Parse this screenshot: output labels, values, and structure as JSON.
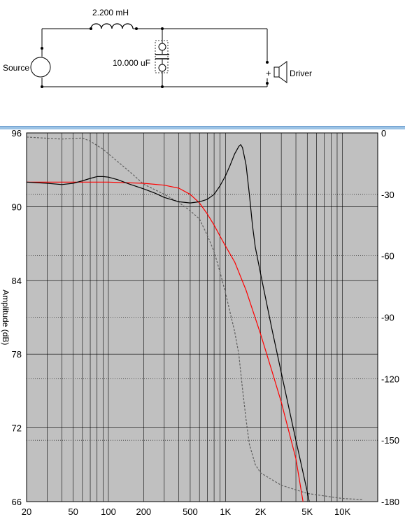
{
  "schematic": {
    "inductor_label": "2.200 mH",
    "capacitor_label": "10.000 uF",
    "source_label": "Source",
    "driver_label": "Driver",
    "driver_polarity": "+"
  },
  "chart_data": {
    "type": "line",
    "x_scale": "log",
    "xlim": [
      20,
      20000
    ],
    "x_ticks": [
      20,
      50,
      100,
      200,
      500,
      1000,
      2000,
      5000,
      10000
    ],
    "x_tick_labels": [
      "20",
      "50",
      "100",
      "200",
      "500",
      "1K",
      "2K",
      "5K",
      "10K"
    ],
    "x_gridlines": [
      20,
      30,
      40,
      50,
      60,
      70,
      80,
      90,
      100,
      200,
      300,
      400,
      500,
      600,
      700,
      800,
      900,
      1000,
      2000,
      3000,
      4000,
      5000,
      6000,
      7000,
      8000,
      9000,
      10000,
      20000
    ],
    "ylim_left": [
      66,
      96
    ],
    "y_ticks_left": [
      66,
      72,
      78,
      84,
      90,
      96
    ],
    "ylim_right": [
      -180,
      0
    ],
    "y_ticks_right": [
      0,
      -30,
      -60,
      -90,
      -120,
      -150,
      -180
    ],
    "ylabel_left": "Amplitude (dB)",
    "plot_background": "#c0c0c0",
    "series": [
      {
        "axis": "left",
        "color": "#000000",
        "style": "solid",
        "points": [
          [
            20,
            92.0
          ],
          [
            30,
            91.9
          ],
          [
            40,
            91.8
          ],
          [
            50,
            91.9
          ],
          [
            60,
            92.1
          ],
          [
            70,
            92.3
          ],
          [
            80,
            92.45
          ],
          [
            90,
            92.45
          ],
          [
            100,
            92.4
          ],
          [
            120,
            92.2
          ],
          [
            150,
            91.85
          ],
          [
            200,
            91.45
          ],
          [
            250,
            91.1
          ],
          [
            300,
            90.75
          ],
          [
            400,
            90.4
          ],
          [
            500,
            90.3
          ],
          [
            600,
            90.4
          ],
          [
            700,
            90.6
          ],
          [
            800,
            91.0
          ],
          [
            900,
            91.7
          ],
          [
            1000,
            92.5
          ],
          [
            1100,
            93.4
          ],
          [
            1200,
            94.3
          ],
          [
            1300,
            94.9
          ],
          [
            1350,
            95.05
          ],
          [
            1400,
            94.8
          ],
          [
            1500,
            93.4
          ],
          [
            1600,
            91.0
          ],
          [
            1700,
            88.5
          ],
          [
            1800,
            86.7
          ],
          [
            2000,
            84.5
          ],
          [
            2500,
            80.0
          ],
          [
            3000,
            76.5
          ],
          [
            4000,
            71.0
          ],
          [
            5000,
            66.8
          ],
          [
            5200,
            66.0
          ]
        ]
      },
      {
        "axis": "left",
        "color": "#ff0000",
        "style": "solid",
        "points": [
          [
            20,
            92.0
          ],
          [
            50,
            92.0
          ],
          [
            100,
            92.0
          ],
          [
            200,
            91.9
          ],
          [
            300,
            91.75
          ],
          [
            400,
            91.5
          ],
          [
            500,
            91.0
          ],
          [
            600,
            90.3
          ],
          [
            700,
            89.4
          ],
          [
            800,
            88.5
          ],
          [
            900,
            87.6
          ],
          [
            1000,
            86.8
          ],
          [
            1200,
            85.5
          ],
          [
            1500,
            83.2
          ],
          [
            2000,
            79.6
          ],
          [
            2500,
            76.6
          ],
          [
            3000,
            74.1
          ],
          [
            4000,
            69.5
          ],
          [
            4600,
            66.0
          ]
        ]
      },
      {
        "axis": "right",
        "color": "#606060",
        "style": "dashed",
        "points": [
          [
            20,
            -2
          ],
          [
            40,
            -3
          ],
          [
            60,
            -2.5
          ],
          [
            70,
            -4
          ],
          [
            90,
            -8
          ],
          [
            120,
            -14
          ],
          [
            160,
            -20
          ],
          [
            200,
            -25
          ],
          [
            300,
            -30
          ],
          [
            400,
            -34
          ],
          [
            500,
            -38
          ],
          [
            600,
            -42
          ],
          [
            700,
            -50
          ],
          [
            800,
            -58
          ],
          [
            900,
            -68
          ],
          [
            1000,
            -78
          ],
          [
            1100,
            -88
          ],
          [
            1200,
            -97
          ],
          [
            1300,
            -108
          ],
          [
            1400,
            -125
          ],
          [
            1500,
            -140
          ],
          [
            1600,
            -152
          ],
          [
            1800,
            -162
          ],
          [
            2000,
            -166
          ],
          [
            3000,
            -172
          ],
          [
            5000,
            -176
          ],
          [
            10000,
            -178.5
          ],
          [
            15000,
            -179
          ]
        ]
      }
    ]
  }
}
